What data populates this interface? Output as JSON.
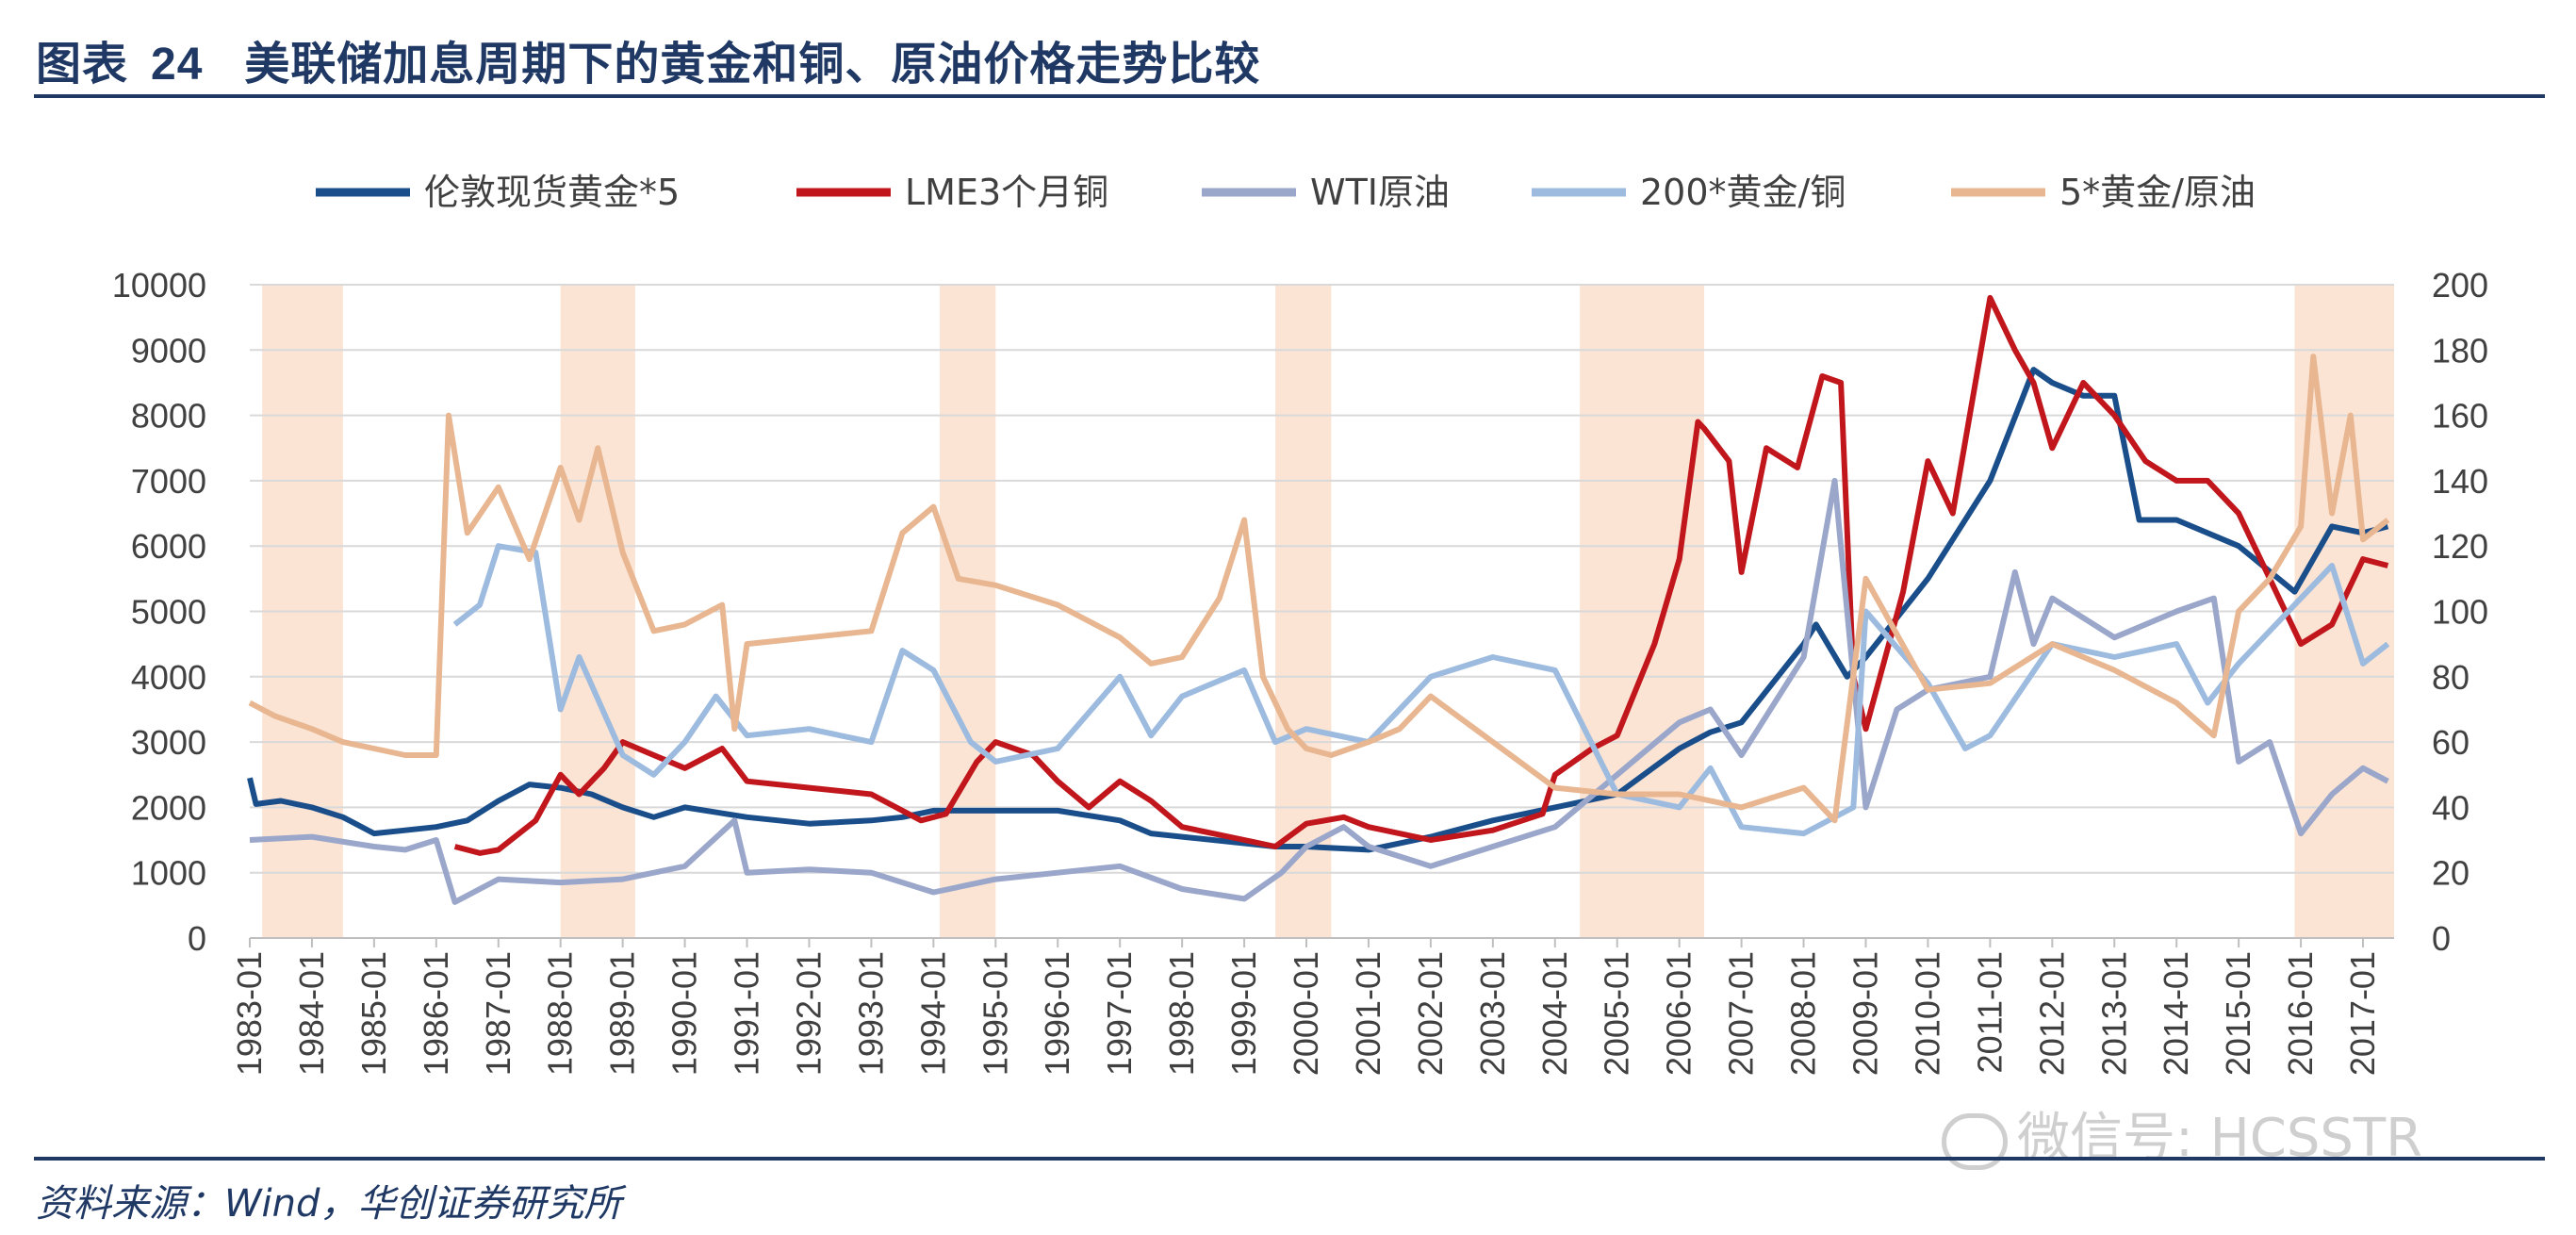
{
  "header": {
    "prefix": "图表",
    "number": "24",
    "title": "美联储加息周期下的黄金和铜、原油价格走势比较"
  },
  "source": "资料来源：Wind，华创证券研究所",
  "watermark": "微信号: HCSSTR",
  "colors": {
    "gold": "#1a4e8a",
    "copper": "#c0161c",
    "oil": "#9aa6ca",
    "gold_copper": "#9dbbdf",
    "gold_oil": "#e8b690",
    "shade": "#fbe4d4"
  },
  "chart_data": {
    "type": "line",
    "x_range": [
      1983.0,
      2017.5
    ],
    "x_ticks": [
      "1983-01",
      "1984-01",
      "1985-01",
      "1986-01",
      "1987-01",
      "1988-01",
      "1989-01",
      "1990-01",
      "1991-01",
      "1992-01",
      "1993-01",
      "1994-01",
      "1995-01",
      "1996-01",
      "1997-01",
      "1998-01",
      "1999-01",
      "2000-01",
      "2001-01",
      "2002-01",
      "2003-01",
      "2004-01",
      "2005-01",
      "2006-01",
      "2007-01",
      "2008-01",
      "2009-01",
      "2010-01",
      "2011-01",
      "2012-01",
      "2013-01",
      "2014-01",
      "2015-01",
      "2016-01",
      "2017-01"
    ],
    "y_left": {
      "range": [
        0,
        10000
      ],
      "ticks": [
        "0",
        "1000",
        "2000",
        "3000",
        "4000",
        "5000",
        "6000",
        "7000",
        "8000",
        "9000",
        "10000"
      ]
    },
    "y_right": {
      "range": [
        0,
        200
      ],
      "ticks": [
        "0",
        "20",
        "40",
        "60",
        "80",
        "100",
        "120",
        "140",
        "160",
        "180",
        "200"
      ]
    },
    "shaded_periods": [
      [
        1983.2,
        1984.5
      ],
      [
        1988.0,
        1989.2
      ],
      [
        1994.1,
        1995.0
      ],
      [
        1999.5,
        2000.4
      ],
      [
        2004.4,
        2006.4
      ],
      [
        2015.9,
        2017.5
      ]
    ],
    "series": [
      {
        "name": "伦敦现货黄金*5",
        "axis": "left",
        "color": "#1a4e8a",
        "x": [
          1983.0,
          1983.1,
          1983.5,
          1984.0,
          1984.5,
          1985.0,
          1985.5,
          1986.0,
          1986.5,
          1987.0,
          1987.5,
          1988.0,
          1988.5,
          1989.0,
          1989.5,
          1990.0,
          1991.0,
          1992.0,
          1993.0,
          1993.5,
          1994.0,
          1995.0,
          1996.0,
          1997.0,
          1997.5,
          1998.0,
          1999.0,
          1999.5,
          2000.0,
          2001.0,
          2002.0,
          2003.0,
          2004.0,
          2005.0,
          2006.0,
          2006.5,
          2007.0,
          2008.0,
          2008.2,
          2008.7,
          2009.0,
          2010.0,
          2011.0,
          2011.7,
          2012.0,
          2012.5,
          2013.0,
          2013.4,
          2014.0,
          2015.0,
          2015.9,
          2016.5,
          2017.0,
          2017.4
        ],
        "y": [
          2450,
          2050,
          2100,
          2000,
          1850,
          1600,
          1650,
          1700,
          1800,
          2100,
          2350,
          2300,
          2200,
          2000,
          1850,
          2000,
          1850,
          1750,
          1800,
          1850,
          1950,
          1950,
          1950,
          1800,
          1600,
          1550,
          1450,
          1400,
          1400,
          1350,
          1550,
          1800,
          2000,
          2200,
          2900,
          3150,
          3300,
          4500,
          4800,
          4000,
          4300,
          5500,
          7000,
          8700,
          8500,
          8300,
          8300,
          6400,
          6400,
          6000,
          5300,
          6300,
          6200,
          6300
        ]
      },
      {
        "name": "LME3个月铜",
        "axis": "left",
        "color": "#c0161c",
        "x": [
          1986.3,
          1986.7,
          1987.0,
          1987.6,
          1988.0,
          1988.3,
          1988.7,
          1989.0,
          1989.5,
          1990.0,
          1990.6,
          1991.0,
          1992.0,
          1993.0,
          1993.8,
          1994.2,
          1994.7,
          1995.0,
          1995.6,
          1996.0,
          1996.5,
          1997.0,
          1997.5,
          1998.0,
          1999.0,
          1999.5,
          2000.0,
          2000.6,
          2001.0,
          2002.0,
          2003.0,
          2003.8,
          2004.0,
          2004.6,
          2005.0,
          2005.6,
          2006.0,
          2006.3,
          2006.4,
          2006.8,
          2007.0,
          2007.4,
          2007.9,
          2008.3,
          2008.6,
          2008.8,
          2009.0,
          2009.6,
          2010.0,
          2010.4,
          2011.0,
          2011.4,
          2011.7,
          2012.0,
          2012.5,
          2013.0,
          2013.5,
          2014.0,
          2014.5,
          2015.0,
          2015.5,
          2016.0,
          2016.5,
          2017.0,
          2017.4
        ],
        "y": [
          1400,
          1300,
          1350,
          1800,
          2500,
          2200,
          2600,
          3000,
          2800,
          2600,
          2900,
          2400,
          2300,
          2200,
          1800,
          1900,
          2700,
          3000,
          2800,
          2400,
          2000,
          2400,
          2100,
          1700,
          1500,
          1400,
          1750,
          1850,
          1700,
          1500,
          1650,
          1900,
          2500,
          2900,
          3100,
          4500,
          5800,
          7900,
          7800,
          7300,
          5600,
          7500,
          7200,
          8600,
          8500,
          4000,
          3200,
          5300,
          7300,
          6500,
          9800,
          9000,
          8500,
          7500,
          8500,
          8000,
          7300,
          7000,
          7000,
          6500,
          5500,
          4500,
          4800,
          5800,
          5700
        ]
      },
      {
        "name": "WTI原油",
        "axis": "left",
        "color": "#9aa6ca",
        "x": [
          1983.0,
          1984.0,
          1985.0,
          1985.5,
          1986.0,
          1986.3,
          1987.0,
          1988.0,
          1989.0,
          1990.0,
          1990.8,
          1991.0,
          1992.0,
          1993.0,
          1994.0,
          1995.0,
          1996.0,
          1997.0,
          1998.0,
          1999.0,
          1999.6,
          2000.0,
          2000.6,
          2001.0,
          2002.0,
          2003.0,
          2004.0,
          2005.0,
          2006.0,
          2006.5,
          2007.0,
          2008.0,
          2008.5,
          2008.8,
          2009.0,
          2009.5,
          2010.0,
          2011.0,
          2011.4,
          2011.7,
          2012.0,
          2013.0,
          2014.0,
          2014.6,
          2015.0,
          2015.5,
          2016.0,
          2016.5,
          2017.0,
          2017.4
        ],
        "y": [
          1500,
          1550,
          1400,
          1350,
          1500,
          550,
          900,
          850,
          900,
          1100,
          1800,
          1000,
          1050,
          1000,
          700,
          900,
          1000,
          1100,
          750,
          600,
          1000,
          1400,
          1700,
          1400,
          1100,
          1400,
          1700,
          2500,
          3300,
          3500,
          2800,
          4300,
          7000,
          4000,
          2000,
          3500,
          3800,
          4000,
          5600,
          4500,
          5200,
          4600,
          5000,
          5200,
          2700,
          3000,
          1600,
          2200,
          2600,
          2400
        ]
      },
      {
        "name": "200*黄金/铜",
        "axis": "right",
        "color": "#9dbbdf",
        "x": [
          1986.3,
          1986.7,
          1987.0,
          1987.6,
          1988.0,
          1988.3,
          1989.0,
          1989.5,
          1990.0,
          1990.5,
          1991.0,
          1992.0,
          1993.0,
          1993.5,
          1994.0,
          1994.6,
          1995.0,
          1996.0,
          1997.0,
          1997.5,
          1998.0,
          1999.0,
          1999.5,
          2000.0,
          2001.0,
          2002.0,
          2003.0,
          2004.0,
          2005.0,
          2006.0,
          2006.5,
          2007.0,
          2008.0,
          2008.8,
          2009.0,
          2010.0,
          2010.6,
          2011.0,
          2012.0,
          2013.0,
          2014.0,
          2014.5,
          2015.0,
          2016.0,
          2016.5,
          2017.0,
          2017.4
        ],
        "y": [
          96,
          102,
          120,
          118,
          70,
          86,
          56,
          50,
          60,
          74,
          62,
          64,
          60,
          88,
          82,
          60,
          54,
          58,
          80,
          62,
          74,
          82,
          60,
          64,
          60,
          80,
          86,
          82,
          44,
          40,
          52,
          34,
          32,
          40,
          100,
          78,
          58,
          62,
          90,
          86,
          90,
          72,
          84,
          104,
          114,
          84,
          90
        ]
      },
      {
        "name": "5*黄金/原油",
        "axis": "right",
        "color": "#e8b690",
        "x": [
          1983.0,
          1983.4,
          1984.0,
          1984.5,
          1985.0,
          1985.5,
          1986.0,
          1986.2,
          1986.5,
          1987.0,
          1987.5,
          1988.0,
          1988.3,
          1988.6,
          1989.0,
          1989.5,
          1990.0,
          1990.6,
          1990.8,
          1991.0,
          1992.0,
          1993.0,
          1993.5,
          1994.0,
          1994.4,
          1995.0,
          1996.0,
          1997.0,
          1997.5,
          1998.0,
          1998.6,
          1999.0,
          1999.3,
          1999.7,
          2000.0,
          2000.4,
          2001.0,
          2001.5,
          2002.0,
          2003.0,
          2004.0,
          2005.0,
          2006.0,
          2007.0,
          2008.0,
          2008.5,
          2009.0,
          2010.0,
          2011.0,
          2012.0,
          2013.0,
          2014.0,
          2014.6,
          2015.0,
          2015.5,
          2016.0,
          2016.2,
          2016.5,
          2016.8,
          2017.0,
          2017.4
        ],
        "y": [
          72,
          68,
          64,
          60,
          58,
          56,
          56,
          160,
          124,
          138,
          116,
          144,
          128,
          150,
          118,
          94,
          96,
          102,
          64,
          90,
          92,
          94,
          124,
          132,
          110,
          108,
          102,
          92,
          84,
          86,
          104,
          128,
          80,
          64,
          58,
          56,
          60,
          64,
          74,
          60,
          46,
          44,
          44,
          40,
          46,
          36,
          110,
          76,
          78,
          90,
          82,
          72,
          62,
          100,
          110,
          126,
          178,
          130,
          160,
          122,
          128
        ]
      }
    ]
  }
}
